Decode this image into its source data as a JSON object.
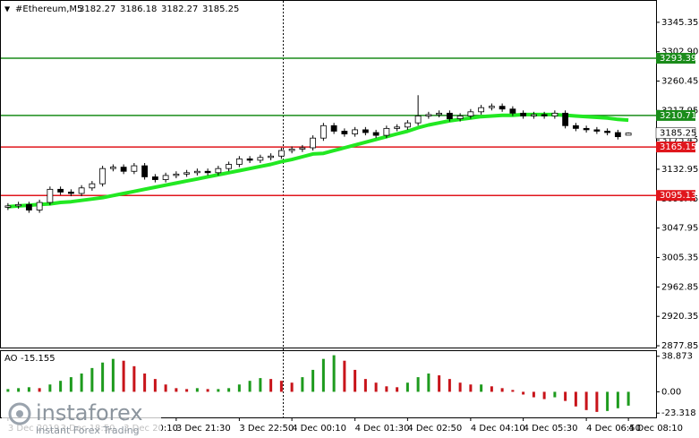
{
  "chart_data": {
    "type": "candlestick",
    "title": "#Ethereum,M5",
    "categories": [
      "3 Dec 2019",
      null,
      null,
      null,
      null,
      "3 Dec 18:50",
      null,
      null,
      null,
      null,
      null,
      "3 Dec 20:10",
      null,
      null,
      null,
      null,
      "3 Dec 21:30",
      null,
      null,
      null,
      null,
      null,
      "3 Dec 22:50",
      null,
      null,
      null,
      null,
      "4 Dec 00:10",
      null,
      null,
      null,
      null,
      null,
      "4 Dec 01:30",
      null,
      null,
      null,
      null,
      "4 Dec 02:50",
      null,
      null,
      null,
      null,
      null,
      "4 Dec 04:10",
      null,
      null,
      null,
      null,
      "4 Dec 05:30",
      null,
      null,
      null,
      null,
      null,
      "4 Dec 06:50",
      null,
      null,
      null,
      "4 Dec 08:10"
    ],
    "open": [
      3078,
      3080,
      3082,
      3074,
      3085,
      3104,
      3100,
      3098,
      3106,
      3112,
      3134,
      3136,
      3130,
      3138,
      3122,
      3118,
      3124,
      3126,
      3128,
      3130,
      3128,
      3134,
      3140,
      3148,
      3146,
      3150,
      3152,
      3160,
      3162,
      3164,
      3178,
      3196,
      3188,
      3184,
      3190,
      3186,
      3182,
      3192,
      3194,
      3200,
      3210,
      3212,
      3214,
      3206,
      3210,
      3216,
      3222,
      3224,
      3220,
      3214,
      3210,
      3212,
      3210,
      3214,
      3196,
      3192,
      3190,
      3188,
      3186,
      3182.27
    ],
    "high": [
      3084,
      3086,
      3086,
      3089,
      3108,
      3108,
      3104,
      3110,
      3116,
      3138,
      3140,
      3140,
      3142,
      3142,
      3126,
      3128,
      3130,
      3132,
      3134,
      3134,
      3138,
      3144,
      3152,
      3152,
      3154,
      3156,
      3164,
      3166,
      3168,
      3182,
      3200,
      3200,
      3192,
      3194,
      3194,
      3190,
      3196,
      3198,
      3204,
      3240,
      3216,
      3218,
      3218,
      3214,
      3220,
      3226,
      3228,
      3228,
      3224,
      3218,
      3216,
      3216,
      3218,
      3218,
      3200,
      3196,
      3194,
      3192,
      3190,
      3186.18
    ],
    "low": [
      3074,
      3076,
      3070,
      3070,
      3081,
      3096,
      3094,
      3094,
      3102,
      3108,
      3130,
      3126,
      3126,
      3118,
      3114,
      3114,
      3120,
      3122,
      3124,
      3124,
      3124,
      3130,
      3136,
      3142,
      3142,
      3146,
      3148,
      3156,
      3158,
      3160,
      3174,
      3184,
      3180,
      3180,
      3182,
      3178,
      3178,
      3188,
      3190,
      3196,
      3206,
      3208,
      3202,
      3202,
      3206,
      3212,
      3218,
      3216,
      3210,
      3206,
      3206,
      3206,
      3206,
      3192,
      3188,
      3186,
      3184,
      3182,
      3176,
      3182.27
    ],
    "close": [
      3080,
      3082,
      3074,
      3085,
      3104,
      3100,
      3098,
      3106,
      3112,
      3134,
      3136,
      3130,
      3138,
      3122,
      3118,
      3124,
      3126,
      3128,
      3130,
      3128,
      3134,
      3140,
      3148,
      3146,
      3150,
      3152,
      3160,
      3162,
      3164,
      3178,
      3196,
      3188,
      3184,
      3190,
      3186,
      3182,
      3192,
      3194,
      3200,
      3210,
      3212,
      3214,
      3206,
      3210,
      3216,
      3222,
      3224,
      3220,
      3214,
      3210,
      3212,
      3210,
      3214,
      3196,
      3192,
      3190,
      3188,
      3186,
      3180,
      3185.25
    ],
    "up_color": "#ffffff",
    "down_color": "#000000",
    "ylim": [
      2875.3,
      3376.3
    ],
    "yticks": [
      3345.35,
      {
        "value": 3302.9,
        "label": "3302.90"
      },
      3260.45,
      3217.95,
      3175.45,
      3132.95,
      3090.45,
      3047.95,
      3005.35,
      2962.85,
      2920.35,
      2877.85
    ],
    "levels": [
      {
        "value": 3293.39,
        "color": "#1a8c1a"
      },
      {
        "value": 3210.71,
        "color": "#1a8c1a"
      },
      {
        "value": 3165.15,
        "color": "#e0161c"
      },
      {
        "value": 3095.13,
        "color": "#e0161c"
      }
    ],
    "ma": {
      "color": "#22e822",
      "values": [
        3079,
        3080,
        3081,
        3082,
        3083,
        3085,
        3086,
        3088,
        3090,
        3092,
        3095,
        3098,
        3101,
        3104,
        3107,
        3110,
        3113,
        3116,
        3119,
        3122,
        3125,
        3128,
        3131,
        3134,
        3137,
        3140,
        3144,
        3147,
        3151,
        3155,
        3156,
        3160,
        3164,
        3168,
        3172,
        3176,
        3180,
        3184,
        3188,
        3193,
        3197,
        3200,
        3203,
        3205,
        3207,
        3209,
        3210,
        3211,
        3211,
        3212,
        3212,
        3212,
        3212,
        3211,
        3210,
        3209,
        3208,
        3207,
        3205,
        3204
      ]
    },
    "indicator": {
      "type": "histogram",
      "name": "AO",
      "up_color": "#1e9b1e",
      "down_color": "#c8141a",
      "values": [
        3,
        4,
        5,
        4,
        8,
        12,
        16,
        20,
        26,
        32,
        36,
        34,
        28,
        20,
        14,
        8,
        4,
        3,
        4,
        3,
        3,
        4,
        8,
        12,
        15,
        14,
        12,
        10,
        16,
        24,
        36,
        40,
        34,
        24,
        14,
        10,
        6,
        5,
        10,
        16,
        20,
        18,
        14,
        10,
        8,
        8,
        6,
        4,
        2,
        -3,
        -6,
        -8,
        -6,
        -10,
        -16,
        -20,
        -22,
        -21,
        -18,
        -15.155
      ],
      "ylim": [
        -28,
        44.5
      ],
      "yticks": [
        38.873,
        {
          "value": 0,
          "label": "0.00"
        },
        -23.318
      ]
    },
    "watermark": {
      "brand": "instaforex",
      "tagline": "Instant Forex Trading"
    }
  }
}
